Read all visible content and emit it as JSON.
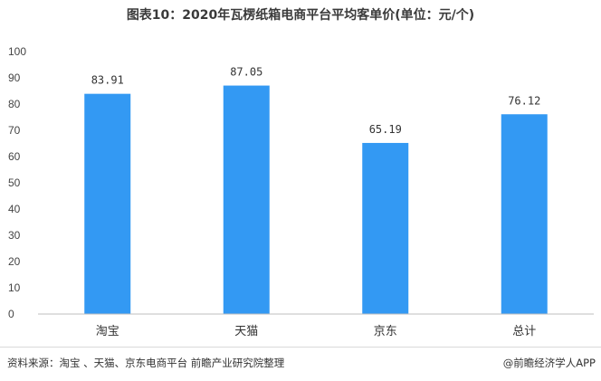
{
  "title": "图表10：2020年瓦楞纸箱电商平台平均客单价(单位：元/个)",
  "chart_data": {
    "type": "bar",
    "categories": [
      "淘宝",
      "天猫",
      "京东",
      "总计"
    ],
    "values": [
      83.91,
      87.05,
      65.19,
      76.12
    ],
    "data_labels": [
      "83.91",
      "87.05",
      "65.19",
      "76.12"
    ],
    "title": "图表10：2020年瓦楞纸箱电商平台平均客单价(单位：元/个)",
    "xlabel": "",
    "ylabel": "",
    "ylim": [
      0,
      100
    ],
    "yticks": [
      "0",
      "10",
      "20",
      "30",
      "40",
      "50",
      "60",
      "70",
      "80",
      "90",
      "100"
    ],
    "grid": false,
    "bar_color": "#3399f3"
  },
  "footer": {
    "source": "资料来源：淘宝 、天猫、京东电商平台 前瞻产业研究院整理",
    "credit": "@前瞻经济学人APP"
  }
}
